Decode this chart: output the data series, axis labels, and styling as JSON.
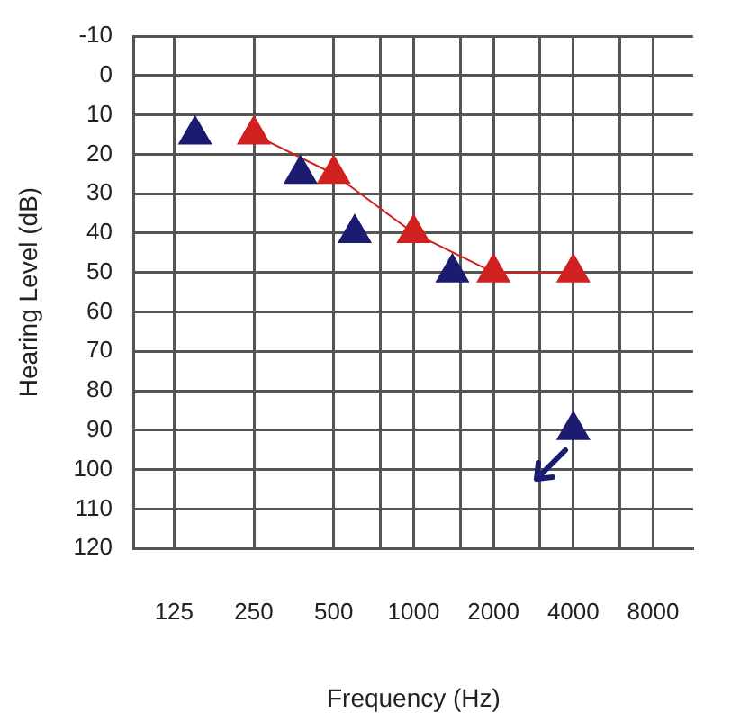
{
  "chart_data": {
    "type": "scatter",
    "xlabel": "Frequency (Hz)",
    "ylabel": "Hearing Level (dB)",
    "log": "x",
    "xlim": [
      88.4,
      11314
    ],
    "xticks": [
      125,
      250,
      500,
      {
        "value": 750,
        "label": null
      },
      1000,
      {
        "value": 1500,
        "label": null
      },
      2000,
      {
        "value": 3000,
        "label": null
      },
      4000,
      {
        "value": 6000,
        "label": null
      },
      8000
    ],
    "ylim": [
      120,
      -10
    ],
    "yticks": [
      -10,
      0,
      10,
      20,
      30,
      40,
      50,
      60,
      70,
      80,
      90,
      100,
      110,
      120
    ],
    "grid": true,
    "legend": false,
    "marker": "triangle",
    "series": [
      {
        "type": "scatter",
        "color": "#1b1b70",
        "x": [
          150,
          375,
          600,
          1400,
          4000
        ],
        "values": [
          15,
          25,
          40,
          50,
          90
        ]
      },
      {
        "type": "line",
        "color": "#d02020",
        "x": [
          250,
          500,
          1000,
          2000,
          4000
        ],
        "values": [
          15,
          25,
          40,
          50,
          50
        ]
      }
    ]
  }
}
